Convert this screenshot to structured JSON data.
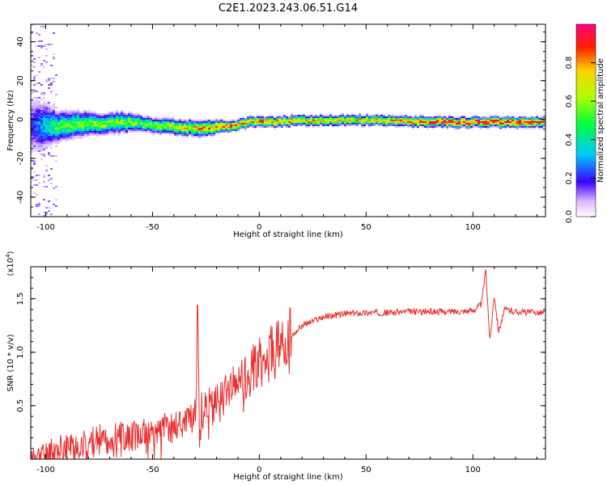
{
  "title": "C2E1.2023.243.06.51.G14",
  "chart_data": [
    {
      "type": "heatmap",
      "xlabel": "Height of straight line (km)",
      "ylabel": "Frequency (Hz)",
      "xlim": [
        -107,
        134
      ],
      "ylim": [
        -50,
        49
      ],
      "xticks": [
        -100,
        -50,
        0,
        50,
        100
      ],
      "yticks": [
        -40,
        -20,
        0,
        20,
        40
      ],
      "colorbar": {
        "label": "Normalized spectral amplitude",
        "range": [
          0,
          1
        ],
        "ticks": [
          0.0,
          0.2,
          0.4,
          0.6,
          0.8
        ]
      },
      "ridge": {
        "description_points_x": [
          -107,
          -95,
          -85,
          -75,
          -65,
          -55,
          -45,
          -35,
          -25,
          -15,
          -5,
          5,
          20,
          50,
          80,
          100,
          120,
          134
        ],
        "frequency_center": [
          -3,
          -3,
          -2,
          -2,
          -1,
          -2,
          -3,
          -4,
          -4,
          -3,
          -1,
          -1,
          0,
          0,
          -1,
          -1,
          -1,
          -1
        ],
        "halfwidth": [
          12,
          6,
          5,
          4,
          4,
          3,
          3,
          3,
          3,
          2,
          2,
          2,
          2,
          2,
          2,
          2,
          2,
          2
        ],
        "peak_amplitude": [
          0.2,
          0.5,
          0.55,
          0.6,
          0.6,
          0.55,
          0.6,
          0.7,
          0.8,
          0.85,
          0.8,
          0.85,
          0.75,
          0.7,
          0.9,
          0.95,
          0.95,
          0.9
        ]
      }
    },
    {
      "type": "line",
      "xlabel": "Height of straight line (km)",
      "ylabel": "SNR (10 * v/v)",
      "multiplier": "(x10^4)",
      "xlim": [
        -107,
        134
      ],
      "ylim": [
        0,
        1.8
      ],
      "xticks": [
        -100,
        -50,
        0,
        50,
        100
      ],
      "yticks": [
        0.5,
        1.0,
        1.5
      ],
      "series": [
        {
          "color": "#e83030",
          "x": [
            -107,
            -100,
            -90,
            -80,
            -70,
            -60,
            -50,
            -40,
            -30,
            -29,
            -28,
            -20,
            -10,
            0,
            5,
            10,
            15,
            20,
            30,
            40,
            50,
            60,
            70,
            80,
            90,
            100,
            104,
            106,
            108,
            110,
            112,
            115,
            120,
            134
          ],
          "y": [
            0.01,
            0.05,
            0.12,
            0.16,
            0.2,
            0.22,
            0.25,
            0.3,
            0.4,
            1.32,
            0.45,
            0.5,
            0.7,
            0.9,
            1.0,
            1.05,
            1.15,
            1.25,
            1.33,
            1.36,
            1.37,
            1.37,
            1.38,
            1.38,
            1.38,
            1.39,
            1.45,
            1.78,
            1.1,
            1.55,
            1.2,
            1.4,
            1.38,
            1.37
          ]
        }
      ]
    }
  ]
}
